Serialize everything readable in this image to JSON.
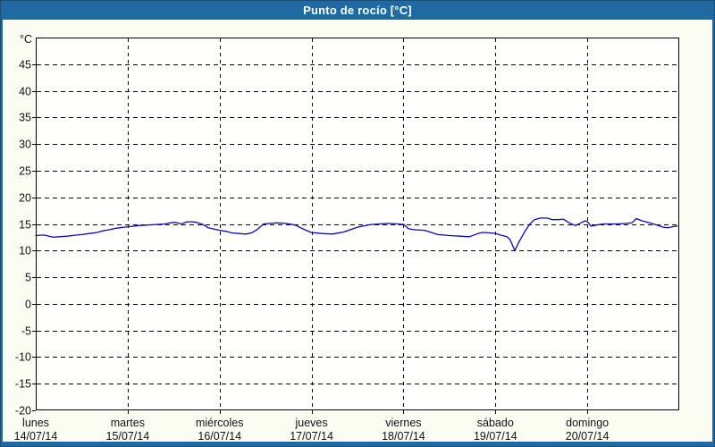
{
  "title": "Punto de rocío [°C]",
  "colors": {
    "frame_blue": "#2069a2",
    "frame_edge": "#1c4d74",
    "panel_bg": "#fcfdf2",
    "plot_bg": "#fffffe",
    "grid": "#000000",
    "axis": "#000000",
    "label_text": "#10101c",
    "title_text": "#ffffff",
    "series_blue": "#0a0ab5"
  },
  "chart_data": {
    "type": "line",
    "title": "Punto de rocío [°C]",
    "ylabel_unit": "°C",
    "ylim": [
      -20,
      50
    ],
    "ytick_interval": 5,
    "ytick_labels": [
      "45",
      "40",
      "35",
      "30",
      "25",
      "20",
      "15",
      "10",
      "5",
      "0",
      "-5",
      "-10",
      "-15",
      "-20"
    ],
    "grid": "dashed",
    "legend": "none",
    "x_hours_total": 168,
    "xticks": [
      {
        "hour": 0,
        "name": "lunes",
        "date": "14/07/14"
      },
      {
        "hour": 24,
        "name": "martes",
        "date": "15/07/14"
      },
      {
        "hour": 48,
        "name": "miércoles",
        "date": "16/07/14"
      },
      {
        "hour": 72,
        "name": "jueves",
        "date": "17/07/14"
      },
      {
        "hour": 96,
        "name": "viernes",
        "date": "18/07/14"
      },
      {
        "hour": 120,
        "name": "sábado",
        "date": "19/07/14"
      },
      {
        "hour": 144,
        "name": "domingo",
        "date": "20/07/14"
      }
    ],
    "series": [
      {
        "name": "Punto de rocío",
        "color": "#0a0ab5",
        "points": [
          [
            0,
            12.8
          ],
          [
            1.2,
            12.9
          ],
          [
            2.3,
            12.9
          ],
          [
            3.5,
            12.7
          ],
          [
            4.7,
            12.5
          ],
          [
            6,
            12.6
          ],
          [
            8.2,
            12.7
          ],
          [
            10.5,
            12.9
          ],
          [
            12,
            13.0
          ],
          [
            14,
            13.2
          ],
          [
            16,
            13.4
          ],
          [
            17.5,
            13.7
          ],
          [
            19,
            13.9
          ],
          [
            21,
            14.2
          ],
          [
            23,
            14.4
          ],
          [
            24.5,
            14.5
          ],
          [
            26.8,
            14.7
          ],
          [
            29.2,
            14.8
          ],
          [
            31.5,
            14.9
          ],
          [
            33.8,
            15.0
          ],
          [
            35,
            15.2
          ],
          [
            36.5,
            15.3
          ],
          [
            38,
            15.0
          ],
          [
            39.5,
            15.4
          ],
          [
            41,
            15.4
          ],
          [
            42,
            15.3
          ],
          [
            43.6,
            14.9
          ],
          [
            45,
            14.3
          ],
          [
            46.2,
            14.1
          ],
          [
            48,
            13.8
          ],
          [
            49.7,
            13.6
          ],
          [
            51.3,
            13.3
          ],
          [
            53,
            13.2
          ],
          [
            54.8,
            13.1
          ],
          [
            56.3,
            13.3
          ],
          [
            57.7,
            13.9
          ],
          [
            58.5,
            14.4
          ],
          [
            59.5,
            15.0
          ],
          [
            61,
            15.1
          ],
          [
            63,
            15.2
          ],
          [
            65.3,
            15.1
          ],
          [
            67.7,
            14.8
          ],
          [
            70,
            14.0
          ],
          [
            71.9,
            13.4
          ],
          [
            74.7,
            13.2
          ],
          [
            77.5,
            13.1
          ],
          [
            80.5,
            13.5
          ],
          [
            84,
            14.4
          ],
          [
            87.5,
            14.9
          ],
          [
            89.8,
            15.0
          ],
          [
            92.2,
            15.1
          ],
          [
            94.5,
            15.0
          ],
          [
            96.1,
            14.9
          ],
          [
            97.3,
            14.1
          ],
          [
            99.2,
            13.9
          ],
          [
            101.5,
            13.8
          ],
          [
            105,
            13.0
          ],
          [
            108.5,
            12.8
          ],
          [
            110.8,
            12.7
          ],
          [
            113.2,
            12.6
          ],
          [
            115.5,
            13.2
          ],
          [
            116.7,
            13.4
          ],
          [
            119,
            13.3
          ],
          [
            120,
            13.2
          ],
          [
            121.4,
            12.9
          ],
          [
            123,
            12.6
          ],
          [
            123.8,
            12.1
          ],
          [
            124.5,
            10.9
          ],
          [
            125.1,
            10.0
          ],
          [
            126,
            11.4
          ],
          [
            126.9,
            12.6
          ],
          [
            127.9,
            13.8
          ],
          [
            129,
            15.0
          ],
          [
            130.2,
            15.8
          ],
          [
            131.8,
            16.1
          ],
          [
            133.5,
            16.1
          ],
          [
            134.9,
            15.8
          ],
          [
            136.5,
            15.8
          ],
          [
            137.7,
            15.9
          ],
          [
            139.3,
            15.2
          ],
          [
            140.2,
            14.9
          ],
          [
            140.9,
            14.7
          ],
          [
            142.3,
            15.2
          ],
          [
            143.5,
            15.6
          ],
          [
            144.2,
            15.3
          ],
          [
            144.9,
            14.6
          ],
          [
            146.5,
            14.8
          ],
          [
            148.2,
            15.0
          ],
          [
            151.7,
            15.0
          ],
          [
            154,
            15.1
          ],
          [
            155.6,
            15.2
          ],
          [
            156.8,
            16.0
          ],
          [
            158.2,
            15.6
          ],
          [
            160.3,
            15.2
          ],
          [
            162.2,
            14.8
          ],
          [
            163.8,
            14.4
          ],
          [
            165,
            14.3
          ],
          [
            166.4,
            14.5
          ],
          [
            167.5,
            14.6
          ]
        ]
      }
    ]
  }
}
